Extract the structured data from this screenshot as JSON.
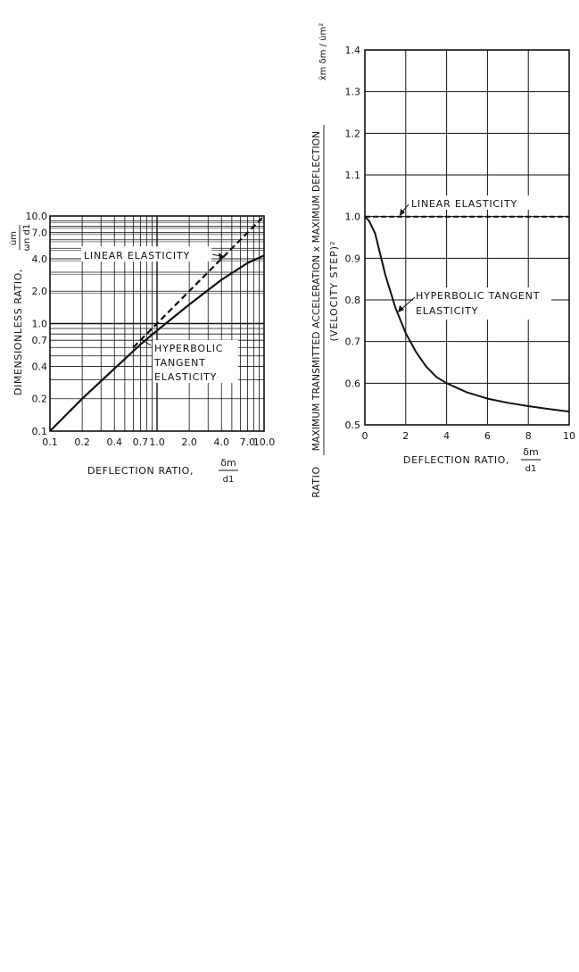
{
  "chart_data": [
    {
      "type": "line",
      "xscale": "log",
      "yscale": "log",
      "xlim": [
        0.1,
        10.0
      ],
      "ylim": [
        0.1,
        10.0
      ],
      "xticks": [
        "0.1",
        "0.2",
        "0.4",
        "0.7",
        "1.0",
        "2.0",
        "4.0",
        "7.0",
        "10.0"
      ],
      "xtick_values": [
        0.1,
        0.2,
        0.4,
        0.7,
        1.0,
        2.0,
        4.0,
        7.0,
        10.0
      ],
      "yticks": [
        "0.1",
        "0.2",
        "0.4",
        "0.7",
        "1.0",
        "2.0",
        "4.0",
        "7.0",
        "10.0"
      ],
      "ytick_values": [
        0.1,
        0.2,
        0.4,
        0.7,
        1.0,
        2.0,
        4.0,
        7.0,
        10.0
      ],
      "xlabel": "DEFLECTION RATIO,",
      "xlabel_frac_num": "δm",
      "xlabel_frac_den": "d1",
      "ylabel": "DIMENSIONLESS RATIO,",
      "ylabel_frac_num": "u̇m",
      "ylabel_frac_den": "ωn d1",
      "grid": true,
      "series": [
        {
          "name": "LINEAR ELASTICITY",
          "style": "dashed",
          "x": [
            0.6,
            1.0,
            2.0,
            4.0,
            7.0,
            10.0
          ],
          "y": [
            0.6,
            1.0,
            2.0,
            4.0,
            7.0,
            10.0
          ]
        },
        {
          "name": "HYPERBOLIC TANGENT ELASTICITY",
          "style": "solid",
          "x": [
            0.1,
            0.2,
            0.4,
            0.7,
            1.0,
            2.0,
            4.0,
            7.0,
            10.0
          ],
          "y": [
            0.1,
            0.2,
            0.38,
            0.64,
            0.86,
            1.5,
            2.55,
            3.65,
            4.3
          ]
        }
      ],
      "annotations": {
        "linear": "LINEAR ELASTICITY",
        "hyperbolic_1": "HYPERBOLIC",
        "hyperbolic_2": "TANGENT",
        "hyperbolic_3": "ELASTICITY"
      }
    },
    {
      "type": "line",
      "xlim": [
        0,
        10
      ],
      "ylim": [
        0.5,
        1.4
      ],
      "xticks": [
        "0",
        "2",
        "4",
        "6",
        "8",
        "10"
      ],
      "xtick_values": [
        0,
        2,
        4,
        6,
        8,
        10
      ],
      "yticks": [
        "0.5",
        "0.6",
        "0.7",
        "0.8",
        "0.9",
        "1.0",
        "1.1",
        "1.2",
        "1.3",
        "1.4"
      ],
      "ytick_values": [
        0.5,
        0.6,
        0.7,
        0.8,
        0.9,
        1.0,
        1.1,
        1.2,
        1.3,
        1.4
      ],
      "xlabel": "DEFLECTION RATIO,",
      "xlabel_frac_num": "δm",
      "xlabel_frac_den": "d1",
      "ylabel_prefix": "RATIO",
      "ylabel_num": "MAXIMUM TRANSMITTED ACCELERATION x MAXIMUM DEFLECTION",
      "ylabel_den": "(VELOCITY STEP)²",
      "ylabel_symbol": "ẍm δm / u̇m²",
      "grid": true,
      "series": [
        {
          "name": "LINEAR ELASTICITY",
          "style": "dashed",
          "x": [
            0,
            10
          ],
          "y": [
            1.0,
            1.0
          ]
        },
        {
          "name": "HYPERBOLIC TANGENT ELASTICITY",
          "style": "solid",
          "x": [
            0,
            0.2,
            0.5,
            0.8,
            1.0,
            1.5,
            2.0,
            2.5,
            3.0,
            3.5,
            4.0,
            5.0,
            6.0,
            7.0,
            8.0,
            9.0,
            10.0
          ],
          "y": [
            1.0,
            0.99,
            0.96,
            0.9,
            0.86,
            0.78,
            0.72,
            0.675,
            0.64,
            0.615,
            0.6,
            0.578,
            0.563,
            0.553,
            0.545,
            0.538,
            0.532
          ]
        }
      ],
      "annotations": {
        "linear": "LINEAR ELASTICITY",
        "hyperbolic_1": "HYPERBOLIC TANGENT",
        "hyperbolic_2": "ELASTICITY"
      }
    }
  ]
}
